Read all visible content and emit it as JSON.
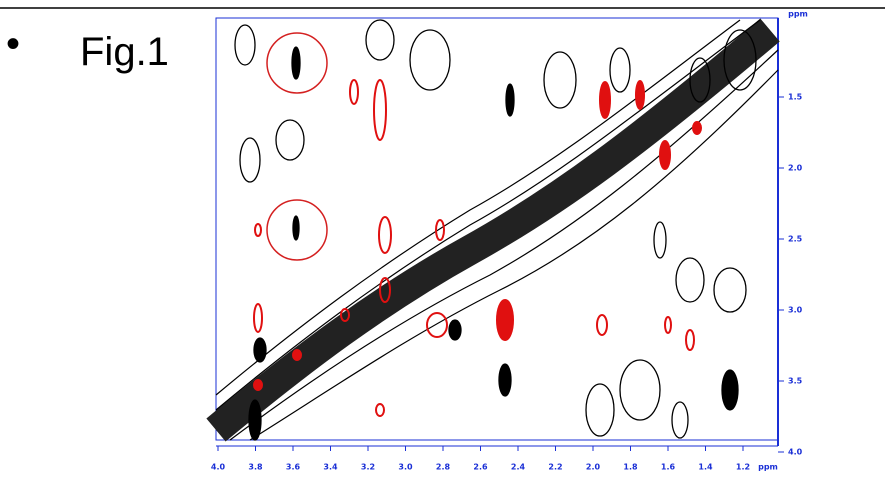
{
  "slide": {
    "label": "Fig.1",
    "figure": {
      "x_axis": {
        "ticks": [
          "4.0",
          "3.8",
          "3.6",
          "3.4",
          "3.2",
          "3.0",
          "2.8",
          "2.6",
          "2.4",
          "2.2",
          "2.0",
          "1.8",
          "1.6",
          "1.4",
          "1.2"
        ],
        "unit": "ppm"
      },
      "y_axis": {
        "ticks": [
          "1.5",
          "2.0",
          "2.5",
          "3.0",
          "3.5",
          "4.0"
        ],
        "unit": "ppm"
      }
    }
  }
}
